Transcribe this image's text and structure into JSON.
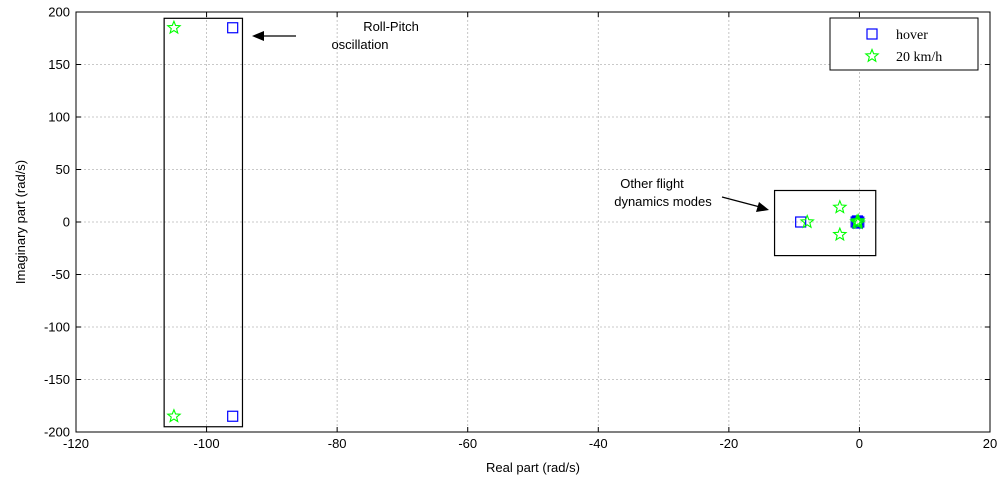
{
  "chart_data": {
    "type": "scatter",
    "xlabel": "Real part (rad/s)",
    "ylabel": "Imaginary part (rad/s)",
    "xlim": [
      -120,
      20
    ],
    "ylim": [
      -200,
      200
    ],
    "xticks": [
      -120,
      -100,
      -80,
      -60,
      -40,
      -20,
      0,
      20
    ],
    "yticks": [
      -200,
      -150,
      -100,
      -50,
      0,
      50,
      100,
      150,
      200
    ],
    "x_tick_labels": [
      "-120",
      "-100",
      "-80",
      "-60",
      "-40",
      "-20",
      "0",
      "20"
    ],
    "y_tick_labels": [
      "-200",
      "-150",
      "-100",
      "-50",
      "0",
      "50",
      "100",
      "150",
      "200"
    ],
    "grid": true,
    "legend_position": "top-right",
    "series": [
      {
        "name": "hover",
        "marker": "square",
        "color": "#0000ff",
        "points": [
          [
            -96,
            185
          ],
          [
            -96,
            -185
          ],
          [
            -9,
            0
          ],
          [
            -0.5,
            0
          ],
          [
            -0.3,
            1
          ],
          [
            -0.3,
            -1
          ],
          [
            -0.1,
            0
          ]
        ]
      },
      {
        "name": "20 km/h",
        "marker": "star",
        "color": "#00ff00",
        "points": [
          [
            -105,
            185
          ],
          [
            -105,
            -185
          ],
          [
            -8,
            0
          ],
          [
            -3,
            14
          ],
          [
            -3,
            -12
          ],
          [
            -0.4,
            0
          ],
          [
            -0.2,
            1
          ],
          [
            -0.2,
            -1
          ]
        ]
      }
    ],
    "annotations": [
      {
        "id": "roll-pitch",
        "lines": [
          "Roll-Pitch",
          "oscillation"
        ],
        "box": {
          "x": [
            -106.5,
            -94.5
          ],
          "y": [
            -195,
            194
          ]
        }
      },
      {
        "id": "other-modes",
        "lines": [
          "Other flight",
          "dynamics modes"
        ],
        "box": {
          "x": [
            -13,
            2.5
          ],
          "y": [
            -32,
            30
          ]
        }
      }
    ]
  }
}
